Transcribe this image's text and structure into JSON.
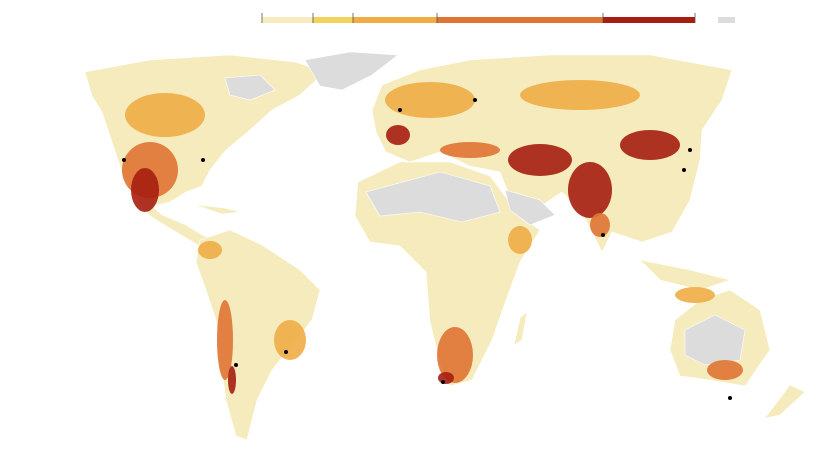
{
  "legend": {
    "colors": [
      "#f6ebbd",
      "#f2d35e",
      "#f0ad45",
      "#e07433",
      "#a61e0f"
    ],
    "no_data_color": "#dcdcdc"
  }
}
